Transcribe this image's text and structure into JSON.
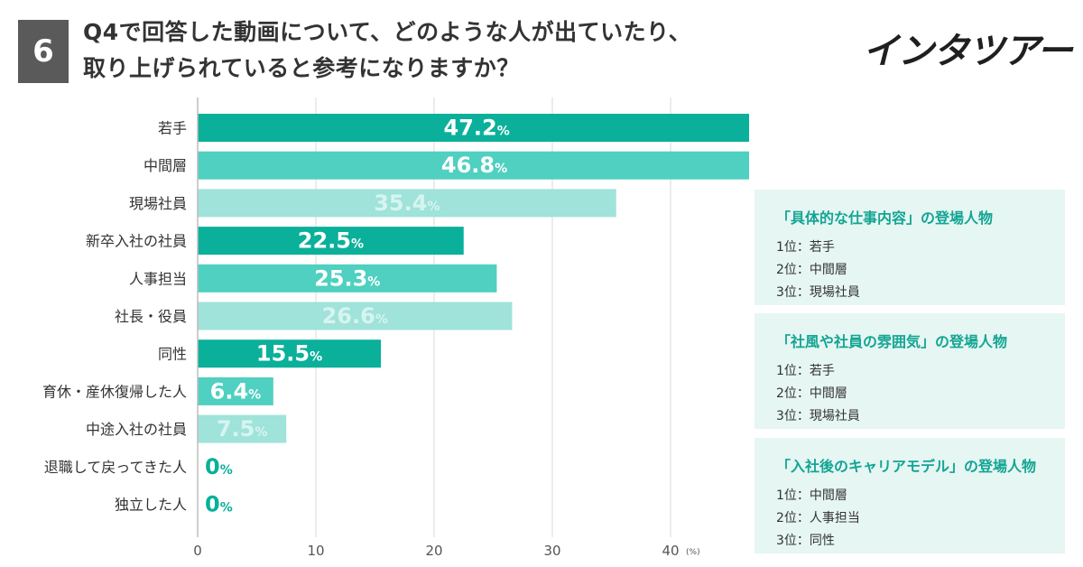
{
  "question": {
    "number": "6",
    "title_line1": "Q4で回答した動画について、どのような人が出ていたり、",
    "title_line2": "取り上げられていると参考になりますか？"
  },
  "logo": {
    "text": "インタツアー"
  },
  "colors": {
    "dark": "#0ab09a",
    "mid": "#4fd0c0",
    "light": "#9fe3da",
    "label_light": "#d8f4f0",
    "panel_bg": "#e6f6f3",
    "panel_title": "#13a593"
  },
  "chart_data": {
    "type": "bar",
    "orientation": "horizontal",
    "categories": [
      "若手",
      "中間層",
      "現場社員",
      "新卒入社の社員",
      "人事担当",
      "社長・役員",
      "同性",
      "育休・産休復帰した人",
      "中途入社の社員",
      "退職して戻ってきた人",
      "独立した人"
    ],
    "values": [
      47.2,
      46.8,
      35.4,
      22.5,
      25.3,
      26.6,
      15.5,
      6.4,
      7.5,
      0,
      0
    ],
    "value_labels": [
      "47.2",
      "46.8",
      "35.4",
      "22.5",
      "25.3",
      "26.6",
      "15.5",
      "6.4",
      "7.5",
      "0",
      "0"
    ],
    "shade": [
      "dark",
      "mid",
      "light",
      "dark",
      "mid",
      "light",
      "dark",
      "mid",
      "light",
      "dark",
      "dark"
    ],
    "unit_suffix": "%",
    "xlim": [
      0,
      50
    ],
    "xticks": [
      "0",
      "10",
      "20",
      "30",
      "40"
    ],
    "xtick_values": [
      0,
      10,
      20,
      30,
      40
    ],
    "x_unit": "(%)",
    "grid": true
  },
  "panels": [
    {
      "title": "「具体的な仕事内容」の登場人物",
      "ranks": [
        "1位：若手",
        "2位：中間層",
        "3位：現場社員"
      ]
    },
    {
      "title": "「社風や社員の雰囲気」の登場人物",
      "ranks": [
        "1位：若手",
        "2位：中間層",
        "3位：現場社員"
      ]
    },
    {
      "title": "「入社後のキャリアモデル」の登場人物",
      "ranks": [
        "1位：中間層",
        "2位：人事担当",
        "3位：同性"
      ]
    }
  ]
}
